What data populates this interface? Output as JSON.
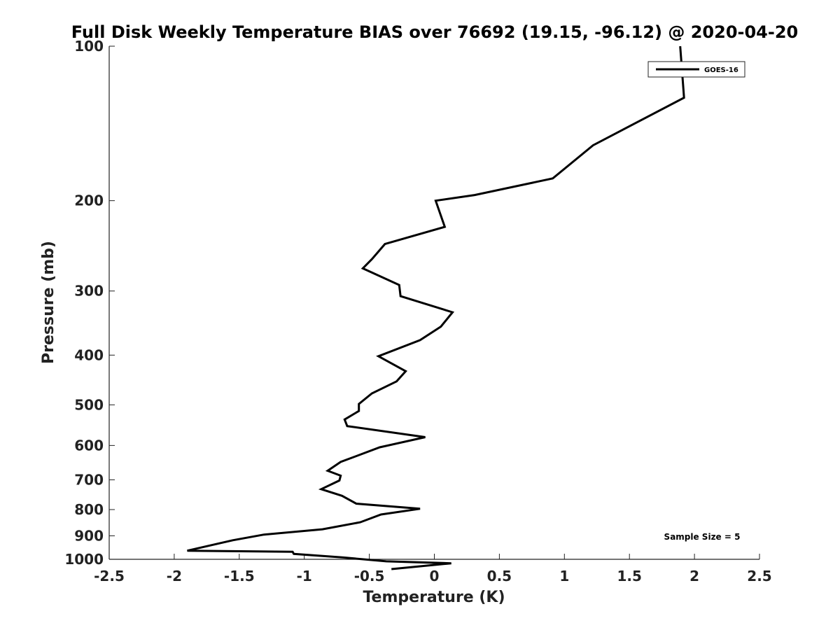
{
  "chart_data": {
    "type": "line",
    "title": "Full Disk Weekly Temperature BIAS over 76692 (19.15, -96.12) @ 2020-04-20",
    "xlabel": "Temperature (K)",
    "ylabel": "Pressure (mb)",
    "xlim": [
      -2.5,
      2.5
    ],
    "ylim": [
      100,
      1000
    ],
    "y_scale": "log",
    "y_inverted": true,
    "xticks": [
      -2.5,
      -2,
      -1.5,
      -1,
      -0.5,
      0,
      0.5,
      1,
      1.5,
      2,
      2.5
    ],
    "xtick_labels": [
      "-2.5",
      "-2",
      "-1.5",
      "-1",
      "-0.5",
      "0",
      "0.5",
      "1",
      "1.5",
      "2",
      "2.5"
    ],
    "yticks": [
      100,
      200,
      300,
      400,
      500,
      600,
      700,
      800,
      900,
      1000
    ],
    "ytick_labels": [
      "100",
      "200",
      "300",
      "400",
      "500",
      "600",
      "700",
      "800",
      "900",
      "1000"
    ],
    "grid": false,
    "legend_position": "top-right",
    "annotation": "Sample Size = 5",
    "series": [
      {
        "name": "GOES-16",
        "color": "#000000",
        "x": [
          1.89,
          1.92,
          1.22,
          0.91,
          0.31,
          0.01,
          0.08,
          -0.38,
          -0.48,
          -0.55,
          -0.27,
          -0.26,
          0.14,
          0.05,
          -0.11,
          -0.43,
          -0.22,
          -0.29,
          -0.48,
          -0.58,
          -0.58,
          -0.69,
          -0.67,
          -0.07,
          -0.42,
          -0.72,
          -0.82,
          -0.72,
          -0.73,
          -0.87,
          -0.71,
          -0.6,
          -0.11,
          -0.41,
          -0.57,
          -0.86,
          -1.31,
          -1.55,
          -1.9,
          -1.09,
          -1.08,
          -0.7,
          -0.37,
          0.13,
          -0.33
        ],
        "y": [
          100,
          126,
          156,
          181,
          195,
          200,
          225,
          243,
          260,
          271,
          292,
          307,
          330,
          352,
          374,
          402,
          430,
          450,
          475,
          498,
          514,
          534,
          550,
          578,
          605,
          646,
          672,
          687,
          702,
          730,
          752,
          779,
          797,
          818,
          847,
          874,
          895,
          918,
          962,
          967,
          976,
          992,
          1009,
          1018,
          1045
        ]
      }
    ]
  }
}
